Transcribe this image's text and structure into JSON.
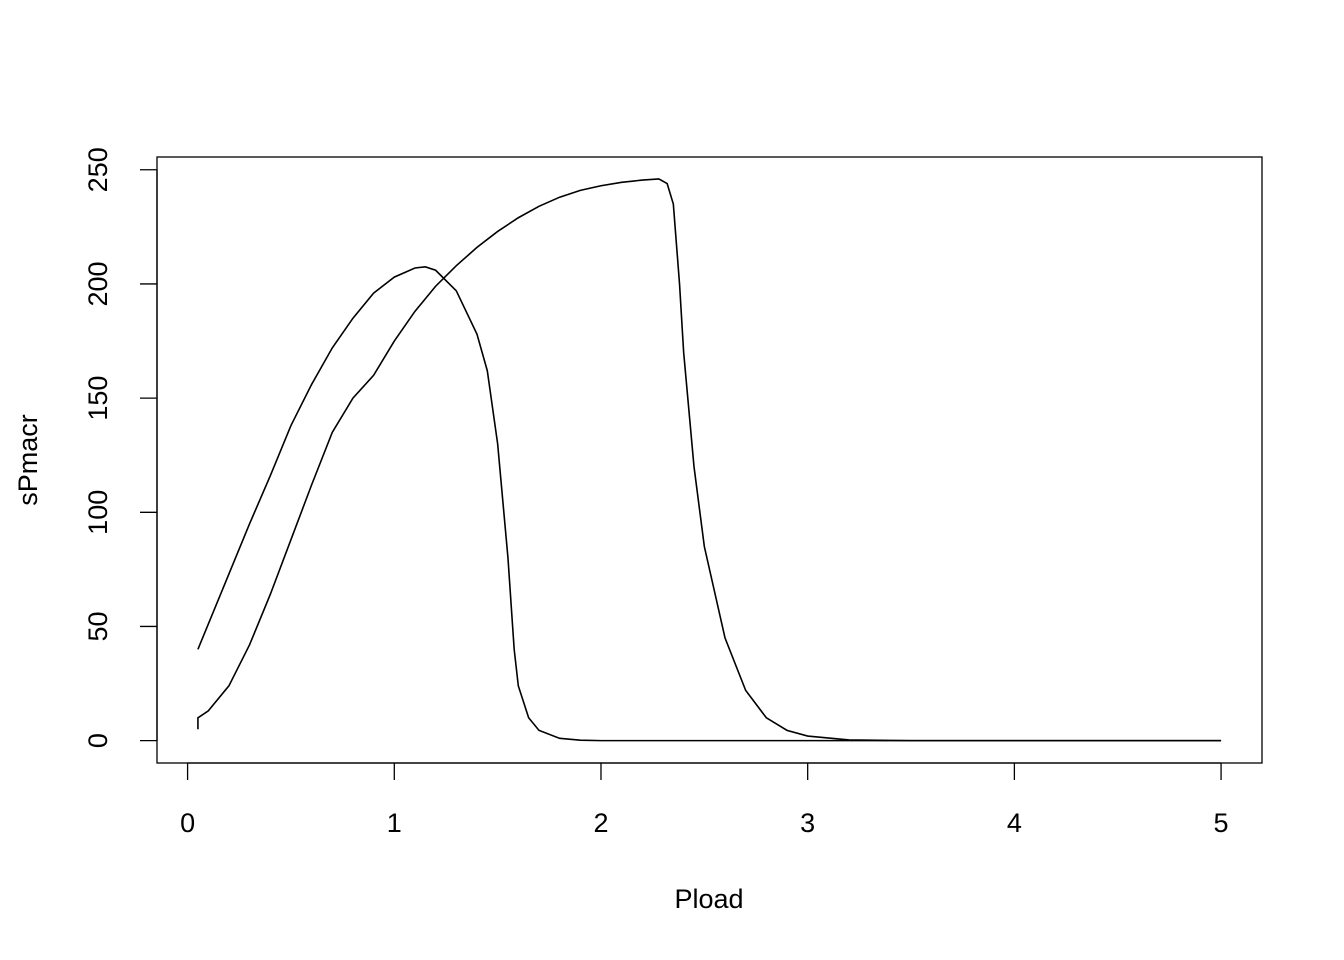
{
  "chart_data": {
    "type": "line",
    "x_label": "Pload",
    "y_label": "sPmacr",
    "xlim": [
      -0.148,
      5.198
    ],
    "ylim": [
      -9.8,
      255.6
    ],
    "xticks": [
      0,
      1,
      2,
      3,
      4,
      5
    ],
    "yticks": [
      0,
      50,
      100,
      150,
      200,
      250
    ],
    "series": [
      {
        "color": "#000000",
        "x": [
          0.05,
          0.1,
          0.2,
          0.3,
          0.4,
          0.5,
          0.6,
          0.7,
          0.8,
          0.9,
          1.0,
          1.1,
          1.15,
          1.2,
          1.3,
          1.4,
          1.45,
          1.5,
          1.55,
          1.58,
          1.6,
          1.65,
          1.7,
          1.8,
          1.9,
          2.0,
          3.0,
          4.0,
          5.0
        ],
        "values": [
          40,
          51,
          73,
          95,
          116,
          138,
          156,
          172,
          185,
          196,
          203,
          207,
          207.5,
          206,
          197,
          178,
          162,
          130,
          80,
          40,
          24,
          10,
          4.5,
          1,
          0.2,
          0,
          0,
          0,
          0
        ]
      },
      {
        "color": "#000000",
        "x": [
          0.05,
          0.05,
          0.1,
          0.2,
          0.3,
          0.4,
          0.5,
          0.6,
          0.7,
          0.8,
          0.9,
          1.0,
          1.1,
          1.2,
          1.3,
          1.4,
          1.5,
          1.6,
          1.7,
          1.8,
          1.9,
          2.0,
          2.1,
          2.2,
          2.28,
          2.32,
          2.35,
          2.38,
          2.4,
          2.45,
          2.5,
          2.6,
          2.7,
          2.8,
          2.9,
          3.0,
          3.2,
          3.5,
          5.0
        ],
        "values": [
          5,
          10,
          13,
          24,
          42,
          64,
          88,
          112,
          135,
          150,
          160,
          175,
          188,
          199,
          208,
          216,
          223,
          229,
          234,
          238,
          241,
          243,
          244.5,
          245.5,
          246,
          244,
          235,
          200,
          170,
          120,
          85,
          45,
          22,
          10,
          4.5,
          2,
          0.3,
          0,
          0
        ]
      }
    ]
  }
}
